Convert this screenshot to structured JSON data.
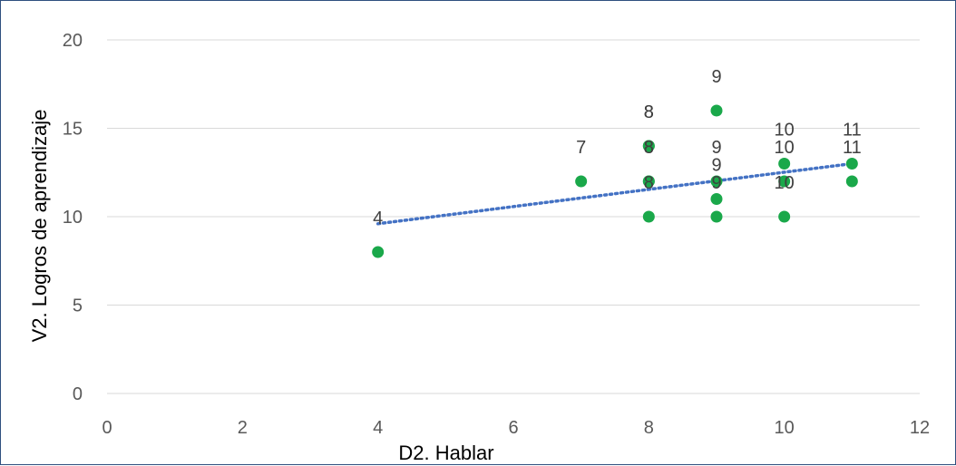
{
  "chart_data": {
    "type": "scatter",
    "xlabel": "D2. Hablar",
    "ylabel": "V2. Logros de aprendizaje",
    "xlim": [
      0,
      12
    ],
    "ylim": [
      0,
      20
    ],
    "x_ticks": [
      "0",
      "2",
      "4",
      "6",
      "8",
      "10",
      "12"
    ],
    "y_ticks": [
      "0",
      "5",
      "10",
      "15",
      "20"
    ],
    "grid": "horizontal",
    "legend": "none",
    "point_color": "#1aa84a",
    "trendline": {
      "type": "linear",
      "style": "dotted",
      "color": "#4472c4",
      "points": [
        [
          4,
          9.6
        ],
        [
          11,
          13.0
        ]
      ]
    },
    "points": [
      {
        "x": 4,
        "y": 8,
        "label": "4"
      },
      {
        "x": 7,
        "y": 12,
        "label": "7"
      },
      {
        "x": 8,
        "y": 14,
        "label": "8"
      },
      {
        "x": 8,
        "y": 14,
        "label": "8"
      },
      {
        "x": 8,
        "y": 12,
        "label": "8"
      },
      {
        "x": 8,
        "y": 12,
        "label": "8"
      },
      {
        "x": 8,
        "y": 10,
        "label": "8"
      },
      {
        "x": 9,
        "y": 16,
        "label": "9"
      },
      {
        "x": 9,
        "y": 12,
        "label": "9"
      },
      {
        "x": 9,
        "y": 11,
        "label": "9"
      },
      {
        "x": 9,
        "y": 10,
        "label": "9"
      },
      {
        "x": 10,
        "y": 13,
        "label": "10"
      },
      {
        "x": 10,
        "y": 12,
        "label": "10"
      },
      {
        "x": 10,
        "y": 10,
        "label": "10"
      },
      {
        "x": 11,
        "y": 13,
        "label": "11"
      },
      {
        "x": 11,
        "y": 12,
        "label": "11"
      }
    ]
  }
}
